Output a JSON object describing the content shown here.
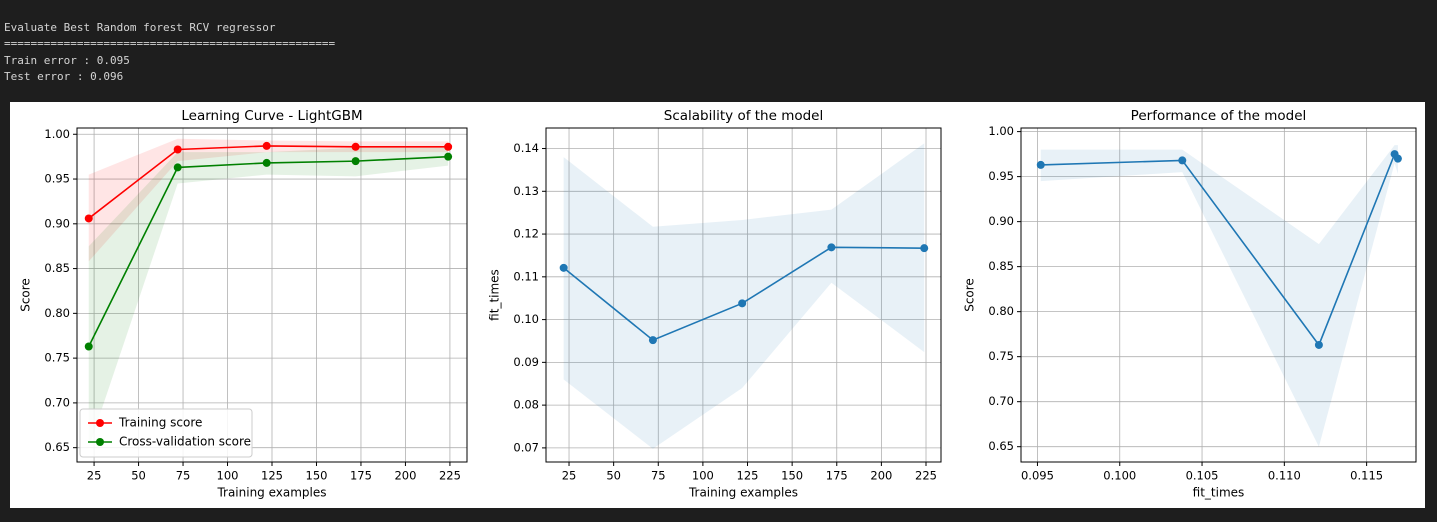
{
  "console": [
    "Evaluate Best Random forest RCV regressor",
    "==================================================",
    "Train error : 0.095",
    "Test error : 0.096"
  ],
  "chart_data": [
    {
      "type": "line",
      "title": "Learning Curve - LightGBM",
      "xlabel": "Training examples",
      "ylabel": "Score",
      "x": [
        22,
        72,
        122,
        172,
        224
      ],
      "series": [
        {
          "name": "Training score",
          "color": "#ff0000",
          "values": [
            0.906,
            0.983,
            0.987,
            0.986,
            0.986
          ],
          "lower": [
            0.858,
            0.97,
            0.98,
            0.98,
            0.98
          ],
          "upper": [
            0.955,
            0.995,
            0.993,
            0.992,
            0.992
          ]
        },
        {
          "name": "Cross-validation score",
          "color": "#008000",
          "values": [
            0.763,
            0.963,
            0.968,
            0.97,
            0.975
          ],
          "lower": [
            0.65,
            0.945,
            0.955,
            0.953,
            0.965
          ],
          "upper": [
            0.875,
            0.98,
            0.98,
            0.985,
            0.985
          ]
        }
      ],
      "xlim": [
        15.4,
        234.6
      ],
      "ylim": [
        0.634,
        1.007
      ],
      "xticks": [
        25,
        50,
        75,
        100,
        125,
        150,
        175,
        200,
        225
      ],
      "yticks": [
        0.65,
        {
          "value": 0.7,
          "label": "0.70"
        },
        0.75,
        {
          "value": 0.8,
          "label": "0.80"
        },
        0.85,
        {
          "value": 0.9,
          "label": "0.90"
        },
        0.95,
        {
          "value": 1,
          "label": "1.00"
        }
      ],
      "grid": true,
      "legend": "lower left"
    },
    {
      "type": "line",
      "title": "Scalability of the model",
      "xlabel": "Training examples",
      "ylabel": "fit_times",
      "x": [
        22,
        72,
        122,
        172,
        224
      ],
      "series": [
        {
          "color": "#1f77b4",
          "values": [
            0.1121,
            0.0952,
            0.1038,
            0.1169,
            0.1167
          ],
          "lower": [
            0.086,
            0.0698,
            0.084,
            0.1086,
            0.0924
          ],
          "upper": [
            0.138,
            0.1217,
            0.1233,
            0.1257,
            0.1412
          ]
        }
      ],
      "xlim": [
        12.1,
        233.4
      ],
      "ylim": [
        0.0667,
        0.1448
      ],
      "xticks": [
        25,
        50,
        75,
        100,
        125,
        150,
        175,
        200,
        225
      ],
      "yticks": [
        0.07,
        0.08,
        0.09,
        {
          "value": 0.1,
          "label": "0.10"
        },
        0.11,
        0.12,
        0.13,
        0.14
      ],
      "grid": true
    },
    {
      "type": "line",
      "title": "Performance of the model",
      "xlabel": "fit_times",
      "ylabel": "Score",
      "x": [
        0.0952,
        0.1038,
        0.1121,
        0.1167,
        0.1169
      ],
      "series": [
        {
          "color": "#1f77b4",
          "values": [
            0.963,
            0.968,
            0.763,
            0.975,
            0.97
          ],
          "lower": [
            0.945,
            0.955,
            0.65,
            0.965,
            0.953
          ],
          "upper": [
            0.98,
            0.98,
            0.875,
            0.985,
            0.985
          ]
        }
      ],
      "xlim": [
        0.094,
        0.118
      ],
      "ylim": [
        0.633,
        1.004
      ],
      "xticks": [
        0.095,
        {
          "value": 0.1,
          "label": "0.100"
        },
        0.105,
        {
          "value": 0.11,
          "label": "0.110"
        },
        0.115
      ],
      "yticks": [
        0.65,
        {
          "value": 0.7,
          "label": "0.70"
        },
        0.75,
        {
          "value": 0.8,
          "label": "0.80"
        },
        0.85,
        {
          "value": 0.9,
          "label": "0.90"
        },
        0.95,
        {
          "value": 1,
          "label": "1.00"
        }
      ],
      "grid": true
    }
  ]
}
